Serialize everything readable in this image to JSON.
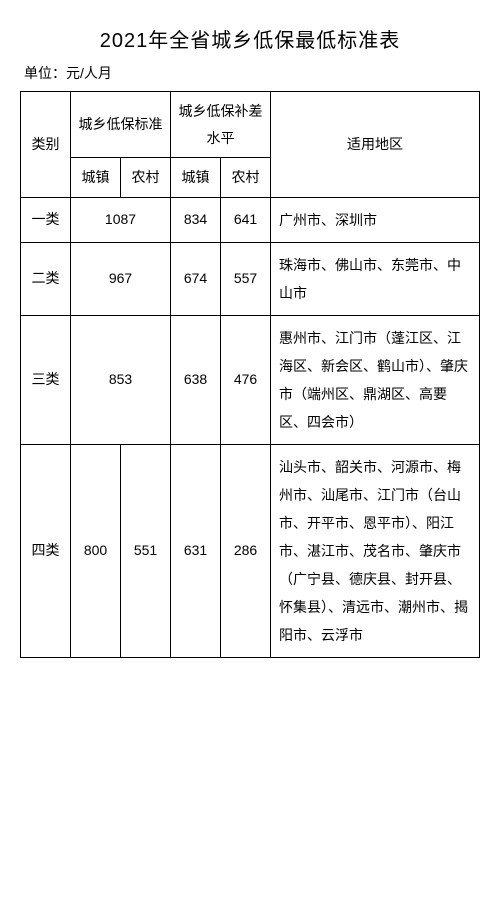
{
  "title": "2021年全省城乡低保最低标准表",
  "unit": "单位：元/人月",
  "headers": {
    "category": "类别",
    "standard": "城乡低保标准",
    "subsidy": "城乡低保补差水平",
    "region": "适用地区",
    "urban": "城镇",
    "rural": "农村"
  },
  "rows": [
    {
      "category": "一类",
      "std_urban": "1087",
      "std_rural": "",
      "sub_urban": "834",
      "sub_rural": "641",
      "region": "广州市、深圳市"
    },
    {
      "category": "二类",
      "std_urban": "967",
      "std_rural": "",
      "sub_urban": "674",
      "sub_rural": "557",
      "region": "珠海市、佛山市、东莞市、中山市"
    },
    {
      "category": "三类",
      "std_urban": "853",
      "std_rural": "",
      "sub_urban": "638",
      "sub_rural": "476",
      "region": "惠州市、江门市（蓬江区、江海区、新会区、鹤山市）、肇庆市（端州区、鼎湖区、高要区、四会市）"
    },
    {
      "category": "四类",
      "std_urban": "800",
      "std_rural": "551",
      "sub_urban": "631",
      "sub_rural": "286",
      "region": "汕头市、韶关市、河源市、梅州市、汕尾市、江门市（台山市、开平市、恩平市）、阳江市、湛江市、茂名市、肇庆市（广宁县、德庆县、封开县、怀集县）、清远市、潮州市、揭阳市、云浮市"
    }
  ],
  "style": {
    "title_fontsize": 20,
    "cell_fontsize": 14,
    "line_height": 1.9,
    "border_color": "#000000",
    "background": "#ffffff",
    "text_color": "#000000"
  }
}
